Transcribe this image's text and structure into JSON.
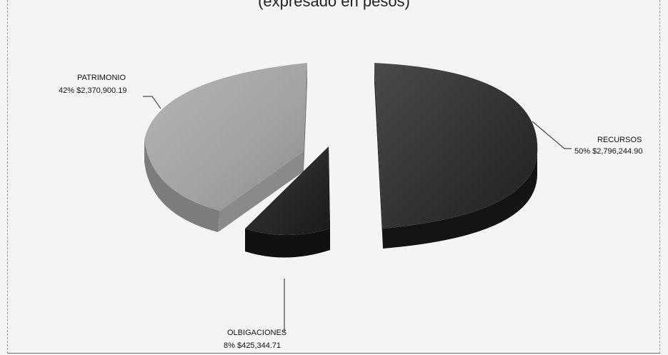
{
  "header": {
    "text": "(expresado en pesos)"
  },
  "chart_data": {
    "type": "pie",
    "style": "3d-exploded",
    "series": [
      {
        "label": "RECURSOS",
        "percent_label": "50%",
        "amount_label": "$2,796,244.90",
        "percent": 50,
        "value": 2796244.9,
        "color": "#2e2e2e"
      },
      {
        "label": "OLBIGACIONES",
        "percent_label": "8%",
        "amount_label": "$425,344.71",
        "percent": 8,
        "value": 425344.71,
        "color": "#1f1f1f"
      },
      {
        "label": "PATRIMONIO",
        "percent_label": "42%",
        "amount_label": "$2,370,900.19",
        "percent": 42,
        "value": 2370900.19,
        "color": "#9a9a9a"
      }
    ],
    "legend": "none"
  }
}
